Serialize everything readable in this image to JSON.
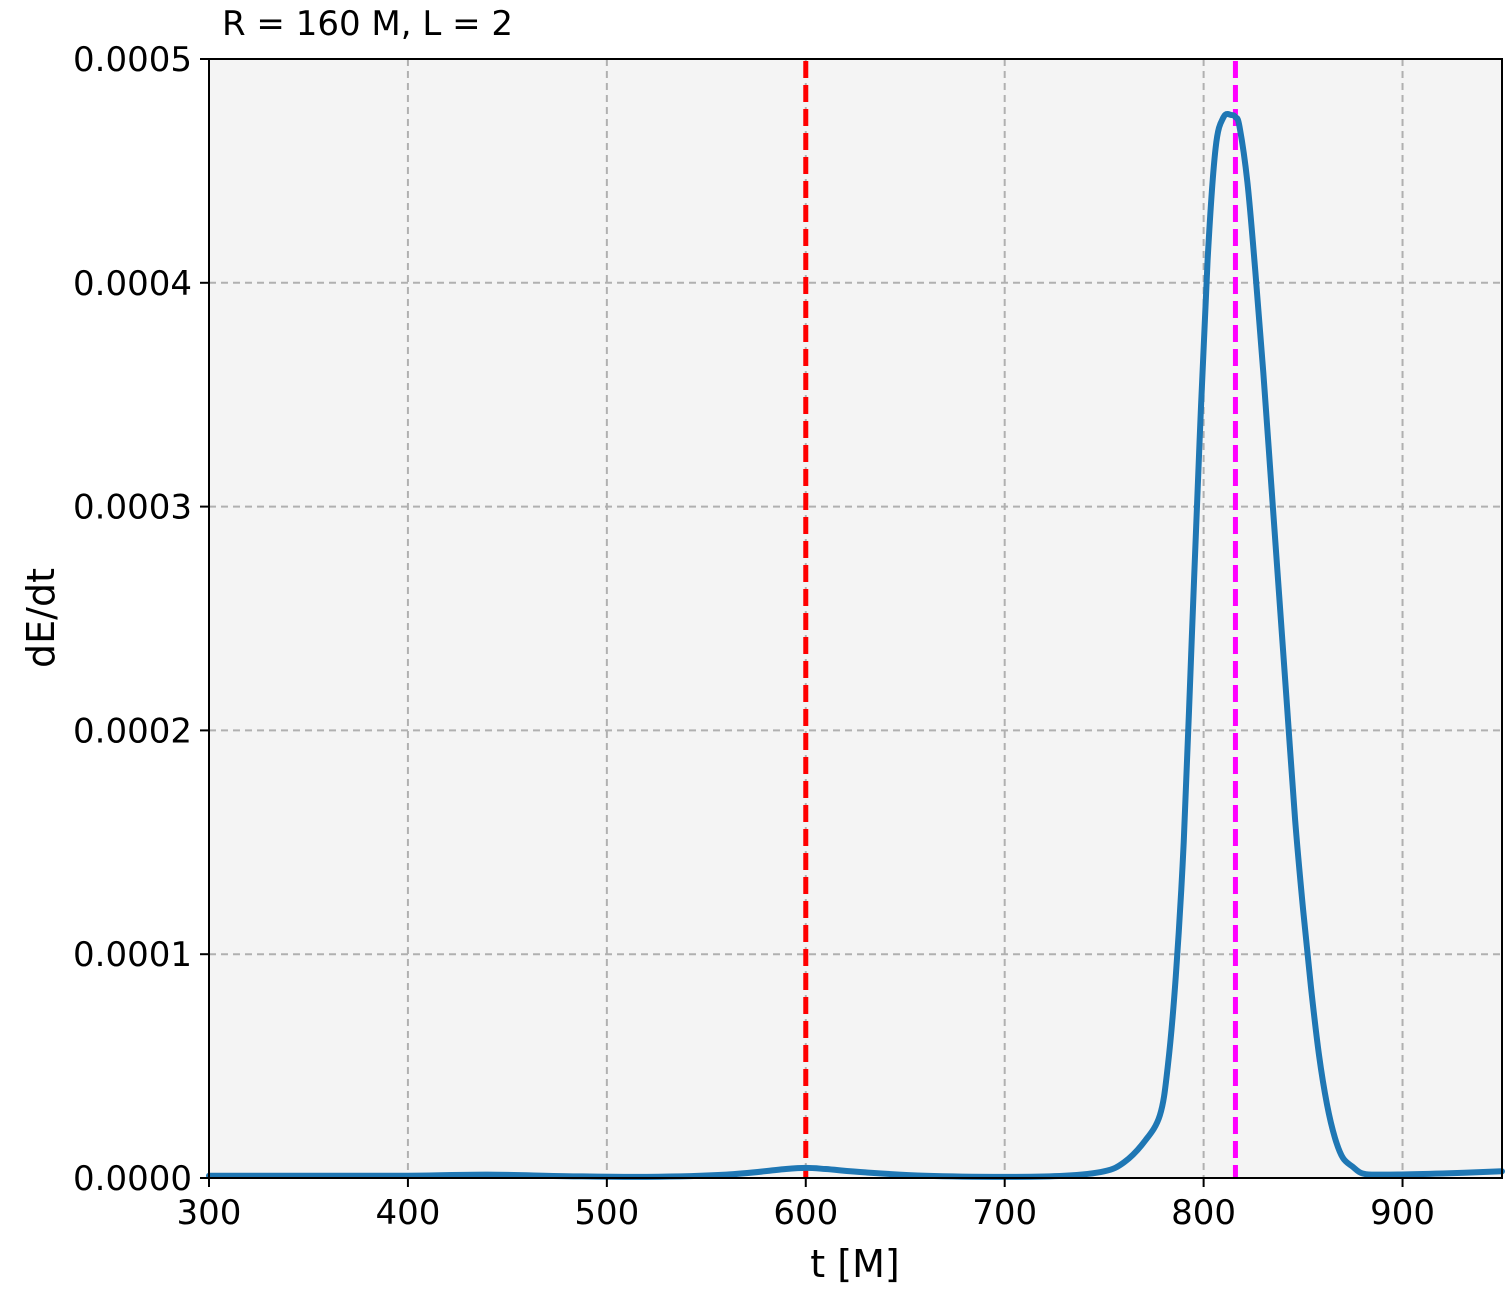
{
  "chart_data": {
    "type": "line",
    "title": "R = 160 M, L = 2",
    "xlabel": "t [M]",
    "ylabel": "dE/dt",
    "xlim": [
      300,
      950
    ],
    "ylim": [
      0,
      0.0005
    ],
    "xticks": [
      300,
      400,
      500,
      600,
      700,
      800,
      900
    ],
    "xtick_labels": [
      "300",
      "400",
      "500",
      "600",
      "700",
      "800",
      "900"
    ],
    "yticks": [
      0,
      0.0001,
      0.0002,
      0.0003,
      0.0004,
      0.0005
    ],
    "ytick_labels": [
      "0.0000",
      "0.0001",
      "0.0002",
      "0.0003",
      "0.0004",
      "0.0005"
    ],
    "grid": true,
    "background": "#f4f4f4",
    "series": [
      {
        "color": "#1f77b4",
        "x": [
          300,
          350,
          400,
          440,
          480,
          520,
          560,
          590,
          600,
          610,
          630,
          660,
          700,
          730,
          750,
          760,
          770,
          778,
          782,
          786,
          790,
          794,
          798,
          802,
          806,
          810,
          814,
          816,
          818,
          822,
          826,
          830,
          834,
          838,
          842,
          846,
          850,
          854,
          858,
          862,
          866,
          870,
          875,
          880,
          890,
          920,
          950
        ],
        "y": [
          1e-06,
          1e-06,
          1e-06,
          1.5e-06,
          8e-07,
          5e-07,
          1.5e-06,
          4e-06,
          4.5e-06,
          4e-06,
          2.5e-06,
          1e-06,
          5e-07,
          1e-06,
          3e-06,
          7e-06,
          1.6e-05,
          2.8e-05,
          5e-05,
          9e-05,
          0.00015,
          0.00024,
          0.00033,
          0.00041,
          0.00046,
          0.000474,
          0.000475,
          0.000474,
          0.00047,
          0.000445,
          0.000405,
          0.00036,
          0.00031,
          0.00026,
          0.00021,
          0.00016,
          0.00012,
          8.5e-05,
          5.5e-05,
          3.3e-05,
          1.8e-05,
          9e-06,
          5e-06,
          2e-06,
          1.5e-06,
          2e-06,
          3e-06
        ]
      }
    ],
    "vlines": [
      {
        "x": 600,
        "color": "#ff0000",
        "style": "dashed"
      },
      {
        "x": 816,
        "color": "#ff00ff",
        "style": "dashed"
      }
    ]
  }
}
